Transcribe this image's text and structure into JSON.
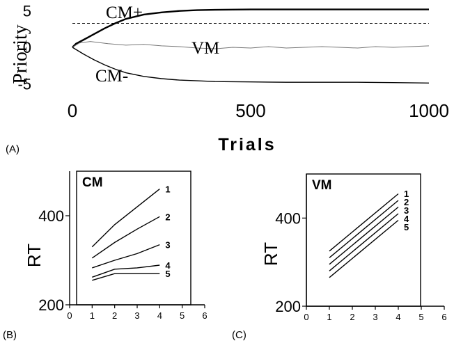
{
  "panels": {
    "A": {
      "label": "(A)"
    },
    "B": {
      "label": "(B)"
    },
    "C": {
      "label": "(C)"
    }
  },
  "chart_data": [
    {
      "id": "A",
      "type": "line",
      "xlabel": "Trials",
      "ylabel": "Priority",
      "xlim": [
        0,
        1000
      ],
      "ylim": [
        -6.5,
        6.5
      ],
      "xticks": [
        0,
        500,
        1000
      ],
      "yticks": [
        5,
        0,
        -5
      ],
      "threshold": 3.3,
      "series": [
        {
          "name": "CM+",
          "color": "#000000",
          "x": [
            0,
            10,
            30,
            60,
            90,
            120,
            150,
            200,
            250,
            300,
            350,
            400,
            500,
            600,
            700,
            800,
            900,
            1000
          ],
          "y": [
            0,
            0.5,
            1.0,
            1.8,
            2.6,
            3.3,
            3.9,
            4.5,
            4.8,
            5.0,
            5.1,
            5.15,
            5.2,
            5.2,
            5.2,
            5.2,
            5.2,
            5.2
          ]
        },
        {
          "name": "VM",
          "color": "#777777",
          "x": [
            0,
            20,
            50,
            100,
            150,
            200,
            250,
            300,
            350,
            400,
            450,
            500,
            550,
            600,
            650,
            700,
            750,
            800,
            850,
            900,
            950,
            1000
          ],
          "y": [
            0,
            0.6,
            0.8,
            0.5,
            0.3,
            0.4,
            0.2,
            0.1,
            -0.1,
            -0.2,
            0.0,
            -0.1,
            0.1,
            -0.1,
            0.0,
            0.1,
            0.0,
            -0.1,
            0.1,
            0.0,
            0.1,
            0.2
          ]
        },
        {
          "name": "CM-",
          "color": "#000000",
          "x": [
            0,
            10,
            30,
            60,
            90,
            120,
            150,
            200,
            250,
            300,
            350,
            400,
            500,
            600,
            700,
            800,
            900,
            1000
          ],
          "y": [
            0,
            -0.3,
            -0.9,
            -1.7,
            -2.4,
            -3.0,
            -3.5,
            -4.0,
            -4.3,
            -4.5,
            -4.6,
            -4.7,
            -4.75,
            -4.8,
            -4.8,
            -4.8,
            -4.85,
            -4.9
          ]
        }
      ]
    },
    {
      "id": "B",
      "type": "line",
      "title": "CM",
      "ylabel": "RT",
      "xlim": [
        0,
        6
      ],
      "ylim": [
        200,
        500
      ],
      "xticks": [
        0,
        1,
        2,
        3,
        4,
        5,
        6
      ],
      "yticks": [
        400,
        200
      ],
      "x": [
        1,
        2,
        3,
        4
      ],
      "series": [
        {
          "name": "1",
          "values": [
            330,
            380,
            420,
            460
          ]
        },
        {
          "name": "2",
          "values": [
            305,
            340,
            370,
            398
          ]
        },
        {
          "name": "3",
          "values": [
            283,
            300,
            315,
            335
          ]
        },
        {
          "name": "4",
          "values": [
            262,
            280,
            283,
            289
          ]
        },
        {
          "name": "5",
          "values": [
            255,
            270,
            270,
            270
          ]
        }
      ]
    },
    {
      "id": "C",
      "type": "line",
      "title": "VM",
      "ylabel": "RT",
      "xlim": [
        0,
        6
      ],
      "ylim": [
        200,
        500
      ],
      "xticks": [
        0,
        1,
        2,
        3,
        4,
        5,
        6
      ],
      "yticks": [
        400,
        200
      ],
      "x": [
        1,
        4
      ],
      "series": [
        {
          "name": "1",
          "values": [
            325,
            455
          ]
        },
        {
          "name": "2",
          "values": [
            310,
            440
          ]
        },
        {
          "name": "3",
          "values": [
            295,
            425
          ]
        },
        {
          "name": "4",
          "values": [
            280,
            410
          ]
        },
        {
          "name": "5",
          "values": [
            265,
            395
          ]
        }
      ]
    }
  ]
}
